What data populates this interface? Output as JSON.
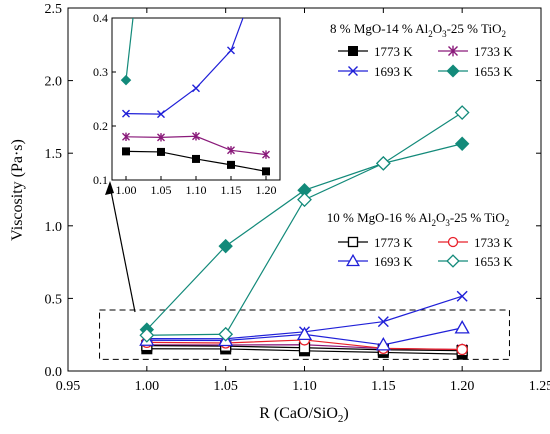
{
  "chart_data": {
    "type": "line",
    "xlabel": "R (CaO/SiO",
    "xlabel_sub": "2",
    "xlabel_close": ")",
    "ylabel": "Viscosity (Pa·s)",
    "xlim": [
      0.95,
      1.25
    ],
    "ylim": [
      0.0,
      2.5
    ],
    "x_ticks": [
      0.95,
      1.0,
      1.05,
      1.1,
      1.15,
      1.2,
      1.25
    ],
    "x_tick_labels": [
      "0.95",
      "1.00",
      "1.05",
      "1.10",
      "1.15",
      "1.20",
      "1.25"
    ],
    "y_ticks": [
      0.0,
      0.5,
      1.0,
      1.5,
      2.0,
      2.5
    ],
    "y_tick_labels": [
      "0.0",
      "0.5",
      "1.0",
      "1.5",
      "2.0",
      "2.5"
    ],
    "x": [
      1.0,
      1.05,
      1.1,
      1.15,
      1.2
    ],
    "groups": [
      {
        "title_parts": [
          "8 % MgO-14 % Al",
          "2",
          "O",
          "3",
          "-25 % TiO",
          "2"
        ],
        "series": [
          {
            "name": "1773 K",
            "color": "#000000",
            "marker": "filled-square",
            "values": [
              0.153,
              0.152,
              0.139,
              0.128,
              0.116
            ]
          },
          {
            "name": "1733 K",
            "color": "#8a1a7a",
            "marker": "asterisk",
            "values": [
              0.18,
              0.179,
              0.181,
              0.155,
              0.147
            ]
          },
          {
            "name": "1693 K",
            "color": "#2020d8",
            "marker": "x",
            "values": [
              0.223,
              0.222,
              0.27,
              0.34,
              0.515
            ]
          },
          {
            "name": "1653 K",
            "color": "#138a7a",
            "marker": "filled-diamond",
            "values": [
              0.285,
              0.86,
              1.245,
              1.43,
              1.565
            ]
          }
        ]
      },
      {
        "title_parts": [
          "10 % MgO-16 % Al",
          "2",
          "O",
          "3",
          "-25 % TiO",
          "2"
        ],
        "series": [
          {
            "name": "1773 K",
            "color": "#000000",
            "marker": "open-square",
            "values": [
              0.175,
              0.171,
              0.16,
              0.146,
              0.14
            ]
          },
          {
            "name": "1733 K",
            "color": "#e8202a",
            "marker": "open-circle",
            "values": [
              0.197,
              0.193,
              0.214,
              0.156,
              0.148
            ]
          },
          {
            "name": "1693 K",
            "color": "#2020d8",
            "marker": "open-triangle",
            "values": [
              0.212,
              0.21,
              0.252,
              0.18,
              0.297
            ]
          },
          {
            "name": "1653 K",
            "color": "#138a7a",
            "marker": "open-diamond",
            "values": [
              0.246,
              0.253,
              1.18,
              1.43,
              1.78
            ]
          }
        ]
      }
    ],
    "inset": {
      "xlim": [
        0.98,
        1.22
      ],
      "ylim": [
        0.1,
        0.4
      ],
      "x_tick_labels": [
        "1.00",
        "1.05",
        "1.10",
        "1.15",
        "1.20"
      ],
      "y_ticks": [
        0.1,
        0.2,
        0.3,
        0.4
      ],
      "y_tick_labels": [
        "0.1",
        "0.2",
        "0.3",
        "0.4"
      ]
    },
    "zoom_box": {
      "x_range": [
        0.97,
        1.23
      ],
      "y_range": [
        0.08,
        0.42
      ]
    }
  }
}
